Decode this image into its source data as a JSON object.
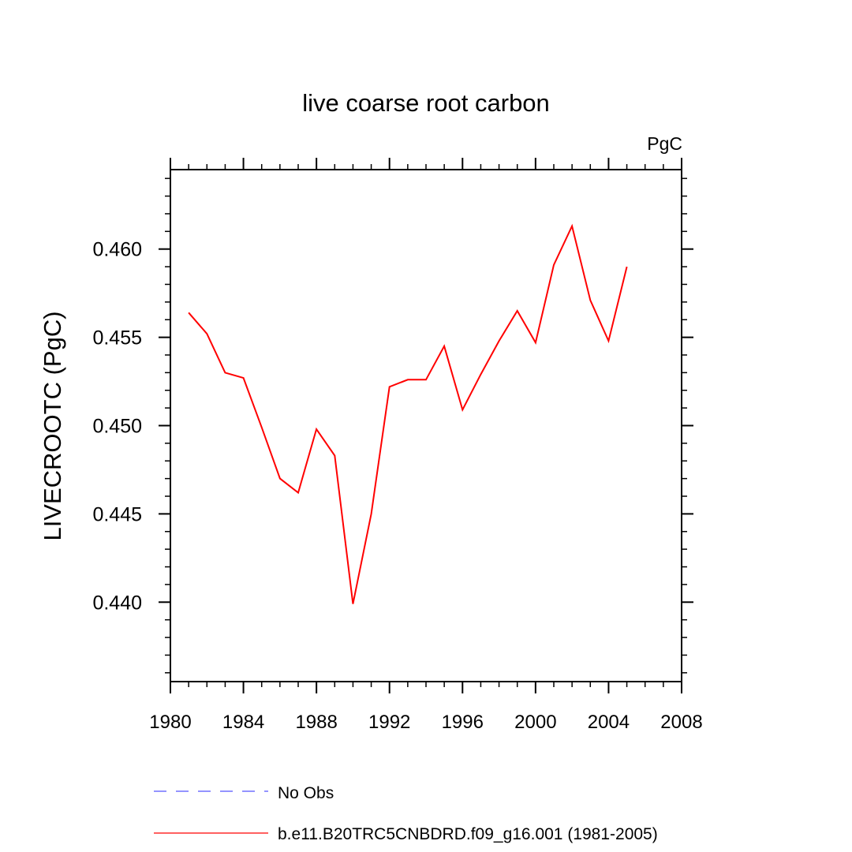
{
  "chart_data": {
    "type": "line",
    "title": "live coarse root carbon",
    "units_label": "PgC",
    "ylabel": "LIVECROOTC  (PgC)",
    "xlabel": "",
    "xlim": [
      1980,
      2008
    ],
    "ylim": [
      0.4355,
      0.4645
    ],
    "x_ticks": [
      1980,
      1984,
      1988,
      1992,
      1996,
      2000,
      2004,
      2008
    ],
    "x_tick_labels": [
      "1980",
      "1984",
      "1988",
      "1992",
      "1996",
      "2000",
      "2004",
      "2008"
    ],
    "y_ticks": [
      0.44,
      0.445,
      0.45,
      0.455,
      0.46
    ],
    "y_tick_labels": [
      "0.440",
      "0.445",
      "0.450",
      "0.455",
      "0.460"
    ],
    "grid": false,
    "legend_position": "bottom",
    "series": [
      {
        "name": "b.e11.B20TRC5CNBDRD.f09_g16.001 (1981-2005)",
        "color": "#ff0000",
        "dash": "solid",
        "x": [
          1981,
          1982,
          1983,
          1984,
          1985,
          1986,
          1987,
          1988,
          1989,
          1990,
          1991,
          1992,
          1993,
          1994,
          1995,
          1996,
          1997,
          1998,
          1999,
          2000,
          2001,
          2002,
          2003,
          2004,
          2005
        ],
        "values": [
          0.4564,
          0.4552,
          0.453,
          0.4527,
          0.4499,
          0.447,
          0.4462,
          0.4498,
          0.4483,
          0.4399,
          0.445,
          0.4522,
          0.4526,
          0.4526,
          0.4545,
          0.4509,
          0.4529,
          0.4548,
          0.4565,
          0.4547,
          0.4591,
          0.4613,
          0.4571,
          0.4548,
          0.459
        ]
      }
    ],
    "legend": [
      {
        "label": "No Obs",
        "color": "#5555ff",
        "dash": "dashed"
      },
      {
        "label": "b.e11.B20TRC5CNBDRD.f09_g16.001 (1981-2005)",
        "color": "#ff0000",
        "dash": "solid"
      }
    ]
  }
}
